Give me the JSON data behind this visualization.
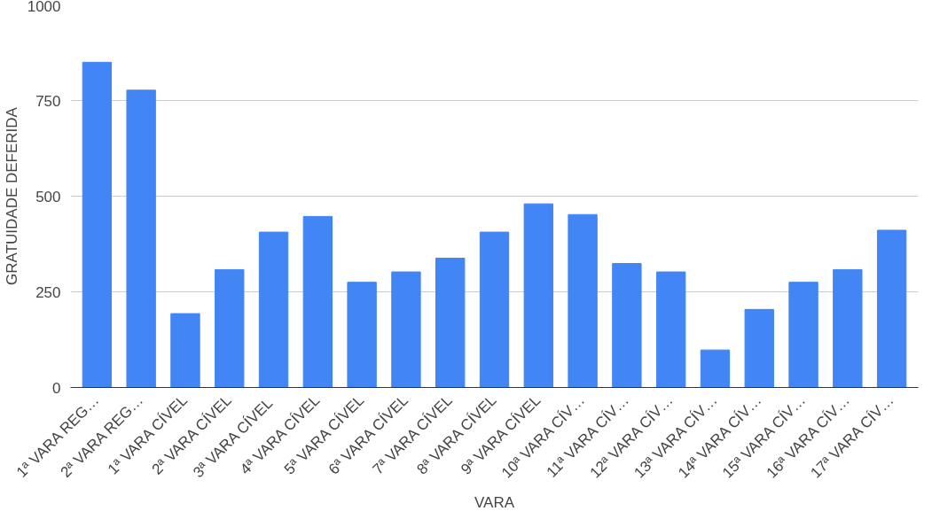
{
  "chart_data": {
    "type": "bar",
    "xlabel": "VARA",
    "ylabel": "GRATUIDADE DEFERIDA",
    "categories": [
      "1ª VARA REG…",
      "2ª VARA REG…",
      "1ª VARA CÍVEL",
      "2ª VARA CÍVEL",
      "3ª  VARA CÍVEL",
      "4ª VARA CÍVEL",
      "5ª VARA CÍVEL",
      "6ª VARA CÍVEL",
      "7ª VARA CÍVEL",
      "8ª VARA CÍVEL",
      "9ª VARA CÍVEL",
      "10ª VARA CÍV…",
      "11ª VARA CÍV…",
      "12ª VARA CÍV…",
      "13ª VARA CÍV…",
      "14ª VARA CÍV…",
      "15ª VARA CÍV…",
      "16ª VARA CÍV…",
      "17ª VARA CÍV…"
    ],
    "values": [
      850,
      777,
      193,
      308,
      406,
      447,
      275,
      302,
      338,
      406,
      480,
      452,
      324,
      302,
      98,
      204,
      275,
      308,
      411
    ],
    "color": "#4285f4",
    "ylim": [
      0,
      1000
    ],
    "yticks": [
      0,
      250,
      500,
      750,
      1000
    ],
    "grid": "y"
  }
}
